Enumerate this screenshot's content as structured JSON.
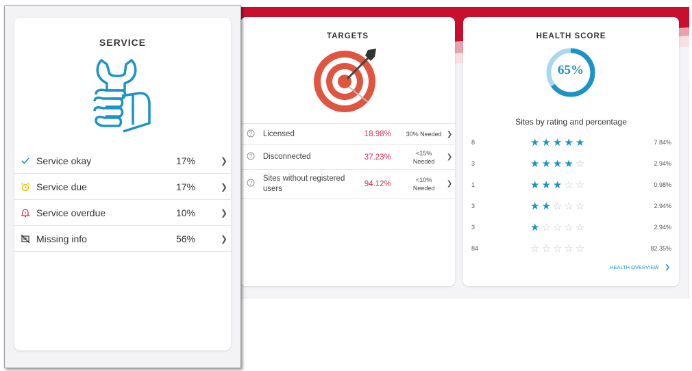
{
  "service": {
    "title": "SERVICE",
    "rows": [
      {
        "label": "Service okay",
        "percent": "17%",
        "icon": "check-icon"
      },
      {
        "label": "Service due",
        "percent": "17%",
        "icon": "alarm-clock-icon"
      },
      {
        "label": "Service overdue",
        "percent": "10%",
        "icon": "bell-alert-icon"
      },
      {
        "label": "Missing info",
        "percent": "56%",
        "icon": "no-info-icon"
      }
    ]
  },
  "targets": {
    "title": "TARGETS",
    "rows": [
      {
        "label": "Licensed",
        "percent": "18.98%",
        "needed_line1": "30% Needed",
        "needed_line2": ""
      },
      {
        "label": "Disconnected",
        "percent": "37.23%",
        "needed_line1": "<15%",
        "needed_line2": "Needed"
      },
      {
        "label": "Sites without registered users",
        "percent": "94.12%",
        "needed_line1": "<10%",
        "needed_line2": "Needed"
      }
    ]
  },
  "health": {
    "title": "HEALTH SCORE",
    "score": "65%",
    "score_value": 0.65,
    "subtitle": "Sites by rating and percentage",
    "rows": [
      {
        "count": "8",
        "stars": 5,
        "percent": "7.84%"
      },
      {
        "count": "3",
        "stars": 4,
        "percent": "2.94%"
      },
      {
        "count": "1",
        "stars": 3,
        "percent": "0.98%"
      },
      {
        "count": "3",
        "stars": 2,
        "percent": "2.94%"
      },
      {
        "count": "3",
        "stars": 1,
        "percent": "2.94%"
      },
      {
        "count": "84",
        "stars": 0,
        "percent": "82.35%"
      }
    ],
    "link": "HEALTH OVERVIEW"
  },
  "colors": {
    "accent_red": "#c8102e",
    "percent_red": "#d0314c",
    "gauge_blue": "#1a93c8",
    "gauge_track": "#a9d8ee",
    "star_off": "#c4c4c4"
  }
}
